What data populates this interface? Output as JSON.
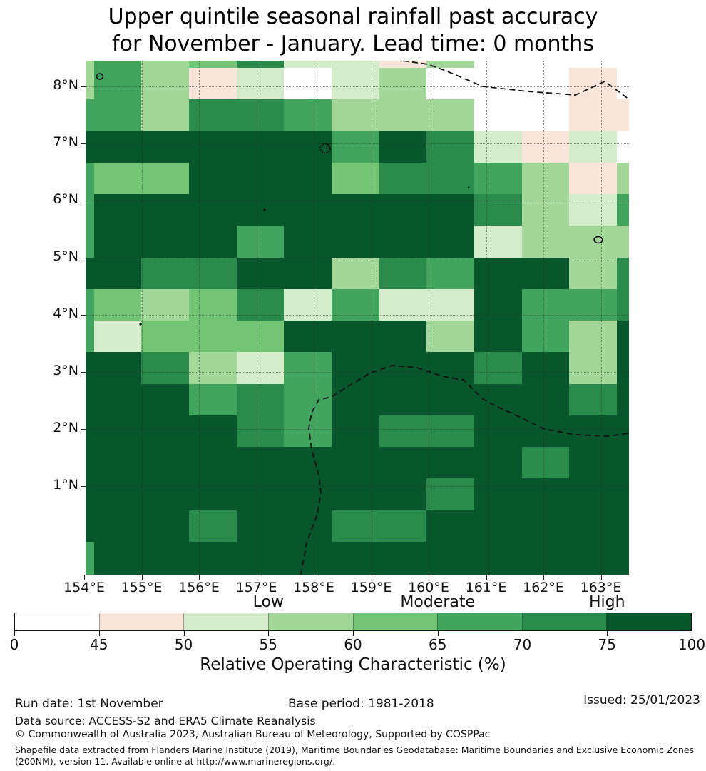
{
  "title": {
    "line1": "Upper quintile seasonal rainfall past accuracy",
    "line2": "for November - January. Lead time: 0 months"
  },
  "chart_data": {
    "type": "heatmap",
    "title": "Upper quintile seasonal rainfall past accuracy for November - January. Lead time: 0 months",
    "x_tick_labels": [
      "154°E",
      "155°E",
      "156°E",
      "157°E",
      "158°E",
      "159°E",
      "160°E",
      "161°E",
      "162°E",
      "163°E"
    ],
    "y_tick_labels": [
      "8°N",
      "7°N",
      "6°N",
      "5°N",
      "4°N",
      "3°N",
      "2°N",
      "1°N"
    ],
    "lon_range": [
      154.0,
      163.5
    ],
    "lat_range": [
      -0.55,
      8.45
    ],
    "grid_on": true,
    "value_buckets": [
      "0-45",
      "45-50",
      "50-55",
      "55-60",
      "60-65",
      "65-70",
      "70-75",
      "75-100"
    ],
    "bucket_colors": [
      "#ffffff",
      "#f9e5da",
      "#d4ecca",
      "#a3d79a",
      "#74c476",
      "#41a55e",
      "#2b8b4d",
      "#07562c"
    ],
    "grid_bucket_index": [
      [
        3,
        5,
        3,
        4,
        6,
        2,
        2,
        1,
        3,
        0,
        0,
        0,
        0
      ],
      [
        3,
        5,
        3,
        1,
        2,
        0,
        2,
        3,
        0,
        0,
        0,
        1,
        0
      ],
      [
        5,
        5,
        3,
        6,
        6,
        5,
        3,
        3,
        3,
        0,
        0,
        1,
        1
      ],
      [
        7,
        7,
        7,
        7,
        7,
        7,
        5,
        7,
        6,
        2,
        1,
        2,
        0
      ],
      [
        5,
        4,
        4,
        7,
        7,
        7,
        4,
        6,
        6,
        5,
        3,
        1,
        3
      ],
      [
        5,
        7,
        7,
        7,
        7,
        7,
        7,
        7,
        7,
        6,
        3,
        2,
        5
      ],
      [
        5,
        7,
        7,
        7,
        5,
        7,
        7,
        7,
        7,
        2,
        3,
        3,
        3
      ],
      [
        7,
        7,
        6,
        6,
        7,
        7,
        3,
        6,
        5,
        7,
        7,
        3,
        6
      ],
      [
        5,
        4,
        3,
        4,
        6,
        2,
        5,
        2,
        2,
        7,
        5,
        5,
        6
      ],
      [
        5,
        2,
        4,
        4,
        4,
        7,
        7,
        7,
        3,
        7,
        5,
        3,
        7
      ],
      [
        7,
        7,
        6,
        3,
        2,
        5,
        7,
        7,
        7,
        6,
        7,
        3,
        7
      ],
      [
        7,
        7,
        7,
        5,
        6,
        5,
        7,
        7,
        7,
        7,
        7,
        6,
        7
      ],
      [
        7,
        7,
        7,
        7,
        6,
        5,
        7,
        6,
        6,
        7,
        7,
        7,
        7
      ],
      [
        7,
        7,
        7,
        7,
        7,
        7,
        7,
        7,
        7,
        7,
        6,
        7,
        7
      ],
      [
        7,
        7,
        7,
        7,
        7,
        7,
        7,
        7,
        6,
        7,
        7,
        7,
        7
      ],
      [
        7,
        7,
        7,
        6,
        7,
        7,
        6,
        6,
        7,
        7,
        7,
        7,
        7
      ],
      [
        5,
        7,
        7,
        7,
        7,
        7,
        7,
        7,
        7,
        7,
        7,
        7,
        7
      ]
    ],
    "colorbar": {
      "label": "Relative Operating Characteristic (%)",
      "ticks": [
        "0",
        "45",
        "50",
        "55",
        "60",
        "65",
        "70",
        "75",
        "100"
      ],
      "qualitative_labels": [
        "Low",
        "Moderate",
        "High"
      ],
      "position": "bottom"
    }
  },
  "footer": {
    "run_date": "Run date: 1st November",
    "base_period": "Base period: 1981-2018",
    "issued": "Issued: 25/01/2023",
    "data_source": "Data source: ACCESS-S2 and ERA5 Climate Reanalysis",
    "copyright": "© Commonwealth of Australia 2023, Australian Bureau of Meteorology, Supported by COSPPac",
    "shapefile_line1": "Shapefile data extracted from Flanders Marine Institute (2019), Maritime Boundaries Geodatabase: Maritime Boundaries and Exclusive Economic Zones",
    "shapefile_line2": "(200NM), version 11. Available online at http://www.marineregions.org/."
  }
}
